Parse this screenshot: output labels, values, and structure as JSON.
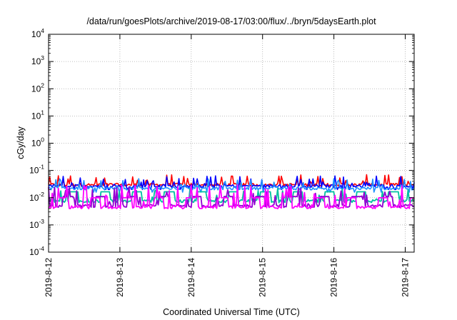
{
  "chart_data": {
    "type": "line",
    "title": "/data/run/goesPlots/archive/2019-08-17/03:00/flux/../bryn/5daysEarth.plot",
    "xlabel": "Coordinated Universal Time (UTC)",
    "ylabel": "cGy/day",
    "yscale": "log",
    "ylim": [
      0.0001,
      10000
    ],
    "xlim": [
      "2019-08-12 00:00",
      "2019-08-17 03:00"
    ],
    "grid": true,
    "legend": "none",
    "y_ticks": [
      {
        "base": "10",
        "exp": "-4"
      },
      {
        "base": "10",
        "exp": "-3"
      },
      {
        "base": "10",
        "exp": "-2"
      },
      {
        "base": "10",
        "exp": "-1"
      },
      {
        "base": "10",
        "exp": "0"
      },
      {
        "base": "10",
        "exp": "1"
      },
      {
        "base": "10",
        "exp": "2"
      },
      {
        "base": "10",
        "exp": "3"
      },
      {
        "base": "10",
        "exp": "4"
      }
    ],
    "x_ticks": [
      "2019-8-12",
      "2019-8-13",
      "2019-8-14",
      "2019-8-15",
      "2019-8-16",
      "2019-8-17"
    ],
    "x_tick_days": [
      0,
      1,
      2,
      3,
      4,
      5
    ],
    "x_span_days": 5.125,
    "series": [
      {
        "color": "#ff0000",
        "base": 0.03,
        "lo": 0.028,
        "hi": 0.07
      },
      {
        "color": "#0000ff",
        "base": 0.027,
        "lo": 0.02,
        "hi": 0.065
      },
      {
        "color": "#1e90ff",
        "base": 0.022,
        "lo": 0.016,
        "hi": 0.05
      },
      {
        "color": "#00c0a0",
        "base": 0.0075,
        "lo": 0.0068,
        "hi": 0.022
      },
      {
        "color": "#9400d3",
        "base": 0.005,
        "lo": 0.0045,
        "hi": 0.025
      },
      {
        "color": "#ff00ff",
        "base": 0.0045,
        "lo": 0.004,
        "hi": 0.03
      }
    ]
  }
}
